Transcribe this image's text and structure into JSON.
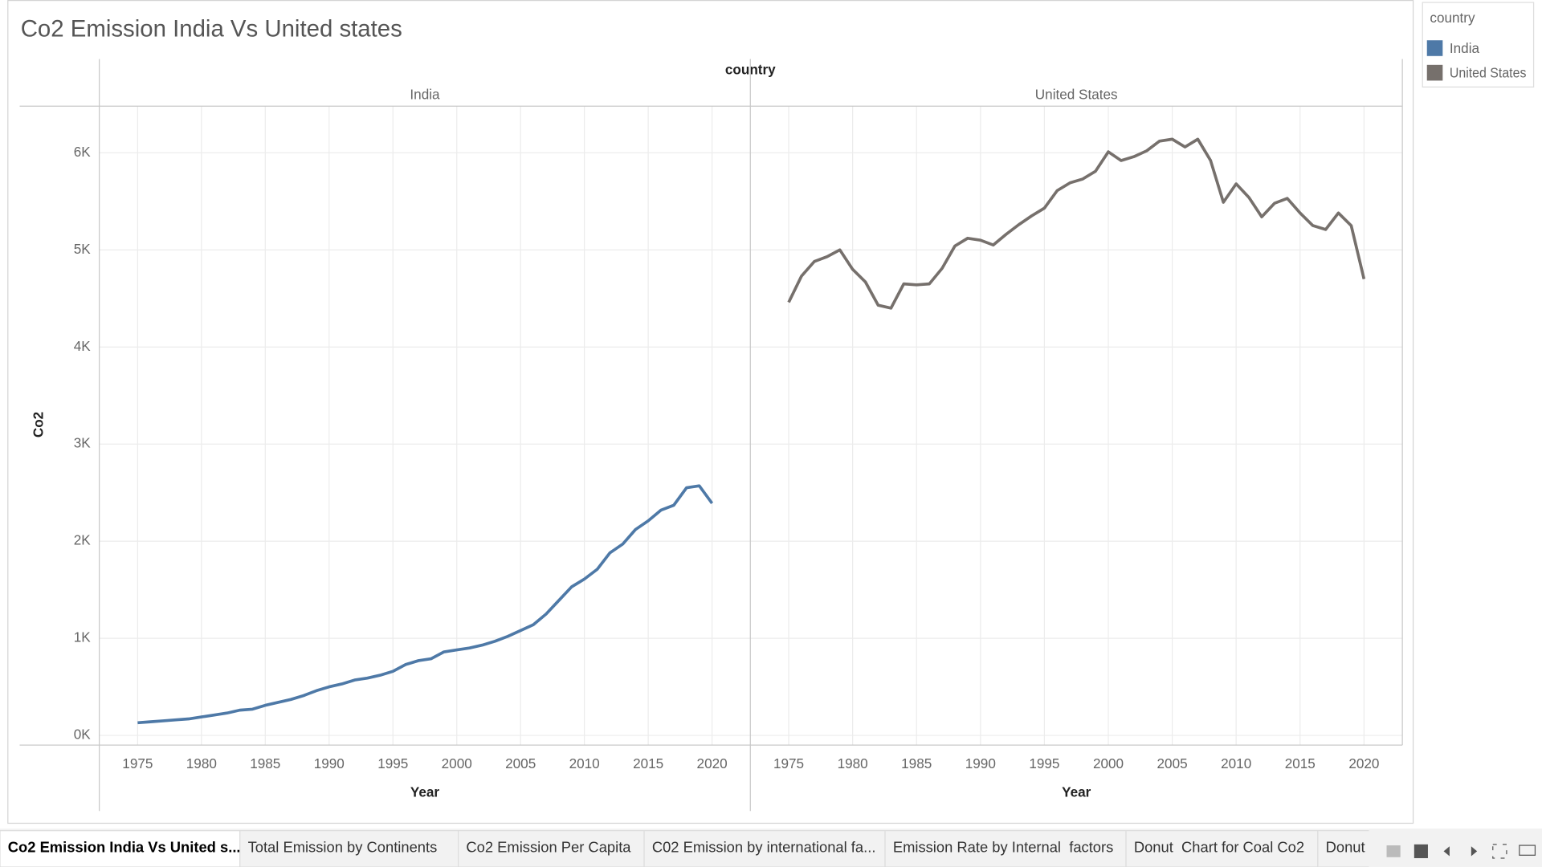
{
  "title": "Co2 Emission India Vs United states",
  "chart_data": {
    "type": "line",
    "facet_label": "country",
    "x_label": "Year",
    "y_label": "Co2",
    "x": [
      1975,
      1976,
      1977,
      1978,
      1979,
      1980,
      1981,
      1982,
      1983,
      1984,
      1985,
      1986,
      1987,
      1988,
      1989,
      1990,
      1991,
      1992,
      1993,
      1994,
      1995,
      1996,
      1997,
      1998,
      1999,
      2000,
      2001,
      2002,
      2003,
      2004,
      2005,
      2006,
      2007,
      2008,
      2009,
      2010,
      2011,
      2012,
      2013,
      2014,
      2015,
      2016,
      2017,
      2018,
      2019,
      2020
    ],
    "xlim": [
      1972,
      2023
    ],
    "xticks": [
      1975,
      1980,
      1985,
      1990,
      1995,
      2000,
      2005,
      2010,
      2015,
      2020
    ],
    "ylim": [
      -100,
      6480
    ],
    "yticks": [
      {
        "value": 0,
        "label": "0K"
      },
      {
        "value": 1000,
        "label": "1K"
      },
      {
        "value": 2000,
        "label": "2K"
      },
      {
        "value": 3000,
        "label": "3K"
      },
      {
        "value": 4000,
        "label": "4K"
      },
      {
        "value": 5000,
        "label": "5K"
      },
      {
        "value": 6000,
        "label": "6K"
      }
    ],
    "grid": true,
    "series": [
      {
        "name": "India",
        "color": "#4e79a7",
        "values": [
          130,
          140,
          150,
          160,
          170,
          190,
          210,
          230,
          260,
          270,
          310,
          340,
          370,
          410,
          460,
          500,
          530,
          570,
          590,
          620,
          660,
          730,
          770,
          790,
          860,
          880,
          900,
          930,
          970,
          1020,
          1080,
          1140,
          1250,
          1390,
          1530,
          1610,
          1710,
          1880,
          1970,
          2120,
          2210,
          2320,
          2370,
          2550,
          2570,
          2390
        ]
      },
      {
        "name": "United States",
        "color": "#76706c",
        "values": [
          4460,
          4730,
          4880,
          4930,
          5000,
          4800,
          4670,
          4430,
          4400,
          4650,
          4640,
          4650,
          4810,
          5040,
          5120,
          5100,
          5050,
          5160,
          5260,
          5350,
          5430,
          5610,
          5690,
          5730,
          5810,
          6010,
          5920,
          5960,
          6020,
          6120,
          6140,
          6060,
          6140,
          5920,
          5490,
          5680,
          5540,
          5340,
          5480,
          5530,
          5380,
          5250,
          5210,
          5380,
          5250,
          4700
        ]
      }
    ]
  },
  "tabs": [
    "Co2 Emission India Vs United s...",
    "Total Emission by Continents",
    "Co2 Emission Per Capita",
    "C02 Emission by international fa...",
    "Emission Rate by Internal  factors",
    "Donut  Chart for Coal Co2",
    "Donut"
  ]
}
